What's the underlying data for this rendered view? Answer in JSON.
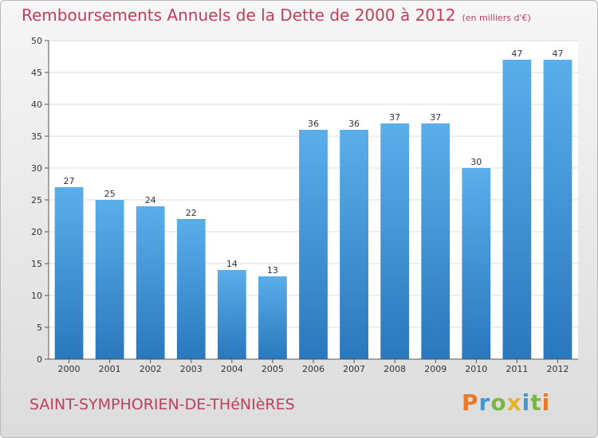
{
  "header": {
    "title": "Remboursements Annuels de la Dette de 2000 à 2012",
    "unit": "(en milliers d'€)"
  },
  "footer": {
    "commune": "SAINT-SYMPHORIEN-DE-THéNIèRES",
    "logo": {
      "letters": [
        {
          "ch": "P",
          "color": "#e8782a"
        },
        {
          "ch": "r",
          "color": "#3a9ad9"
        },
        {
          "ch": "o",
          "color": "#7ab648"
        },
        {
          "ch": "x",
          "color": "#e8b12a"
        },
        {
          "ch": "i",
          "color": "#3a9ad9"
        },
        {
          "ch": "t",
          "color": "#7ab648"
        },
        {
          "ch": "i",
          "color": "#e8782a"
        }
      ]
    }
  },
  "chart_data": {
    "type": "bar",
    "title": "Remboursements Annuels de la Dette de 2000 à 2012",
    "subtitle": "(en milliers d'€)",
    "categories": [
      "2000",
      "2001",
      "2002",
      "2003",
      "2004",
      "2005",
      "2006",
      "2007",
      "2008",
      "2009",
      "2010",
      "2011",
      "2012"
    ],
    "values": [
      27,
      25,
      24,
      22,
      14,
      13,
      36,
      36,
      37,
      37,
      30,
      47,
      47
    ],
    "ylim": [
      0,
      50
    ],
    "yticks": [
      0,
      5,
      10,
      15,
      20,
      25,
      30,
      35,
      40,
      45,
      50
    ],
    "grid": true,
    "data_labels": true,
    "bar_color_top": "#5aaeea",
    "bar_color_bottom": "#2a78bd",
    "plot_background": "#ffffff",
    "grid_color": "#dddddd"
  }
}
